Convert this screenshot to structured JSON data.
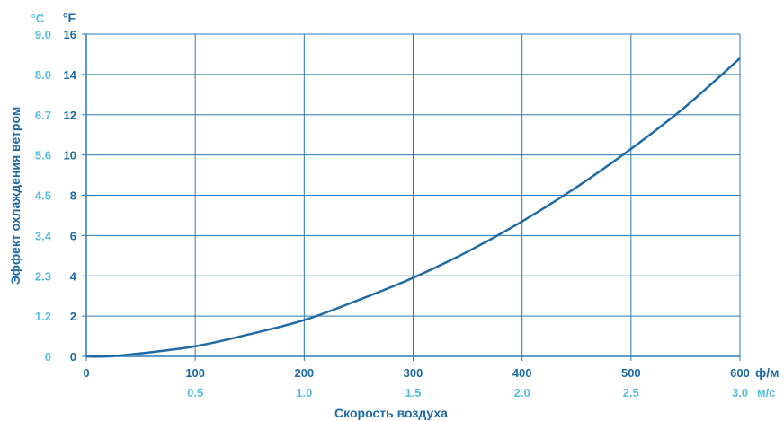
{
  "chart_data": {
    "type": "line",
    "ylabel": "Эффект охлаждения ветром",
    "xlabel": "Скорость воздуха",
    "y_unit_primary": "°F",
    "y_unit_secondary": "°C",
    "x_unit_primary": "ф/м",
    "x_unit_secondary": "м/с",
    "ylim": [
      0,
      16
    ],
    "xlim": [
      0,
      600
    ],
    "y_ticks": [
      "0",
      "2",
      "4",
      "6",
      "8",
      "10",
      "12",
      "14",
      "16"
    ],
    "y_ticks_secondary": [
      "0",
      "1.2",
      "2.3",
      "3.4",
      "4.5",
      "5.6",
      "6.7",
      "8.0",
      "9.0"
    ],
    "x_ticks": [
      "0",
      "100",
      "200",
      "300",
      "400",
      "500",
      "600"
    ],
    "x_ticks_secondary": [
      "0.5",
      "1.0",
      "1.5",
      "2.0",
      "2.5",
      "3.0"
    ],
    "grid": true,
    "series": [
      {
        "x": [
          0,
          20,
          50,
          100,
          150,
          200,
          250,
          300,
          350,
          400,
          450,
          500,
          550,
          600
        ],
        "y": [
          0,
          0.0,
          0.15,
          0.5,
          1.1,
          1.8,
          2.8,
          3.9,
          5.2,
          6.7,
          8.4,
          10.3,
          12.4,
          14.8
        ],
        "color": "#1f6aa5"
      }
    ]
  }
}
